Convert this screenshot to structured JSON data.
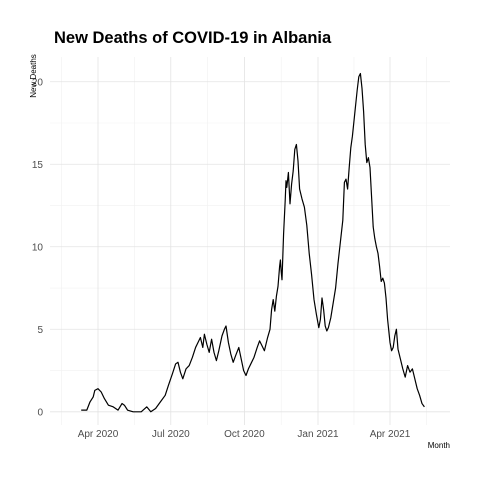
{
  "chart_data": {
    "type": "line",
    "title": "New Deaths of COVID-19 in Albania",
    "xlabel": "Month",
    "ylabel": "New Deaths",
    "xlim": [
      "2020-02-01",
      "2021-06-15"
    ],
    "ylim": [
      -0.8,
      21.5
    ],
    "y_ticks": [
      0,
      5,
      10,
      15,
      20
    ],
    "x_ticks": [
      {
        "date": "2020-04-01",
        "label": "Apr 2020"
      },
      {
        "date": "2020-07-01",
        "label": "Jul 2020"
      },
      {
        "date": "2020-10-01",
        "label": "Oct 2020"
      },
      {
        "date": "2021-01-01",
        "label": "Jan 2021"
      },
      {
        "date": "2021-04-01",
        "label": "Apr 2021"
      }
    ],
    "grid": true,
    "series": [
      {
        "color": "#000000",
        "points": [
          [
            "2020-03-11",
            0.1
          ],
          [
            "2020-03-18",
            0.1
          ],
          [
            "2020-03-22",
            0.6
          ],
          [
            "2020-03-26",
            0.9
          ],
          [
            "2020-03-28",
            1.3
          ],
          [
            "2020-04-01",
            1.4
          ],
          [
            "2020-04-05",
            1.2
          ],
          [
            "2020-04-09",
            0.8
          ],
          [
            "2020-04-14",
            0.4
          ],
          [
            "2020-04-20",
            0.3
          ],
          [
            "2020-04-26",
            0.1
          ],
          [
            "2020-05-01",
            0.5
          ],
          [
            "2020-05-04",
            0.4
          ],
          [
            "2020-05-08",
            0.1
          ],
          [
            "2020-05-15",
            0.0
          ],
          [
            "2020-05-25",
            0.0
          ],
          [
            "2020-06-01",
            0.3
          ],
          [
            "2020-06-06",
            0.0
          ],
          [
            "2020-06-12",
            0.2
          ],
          [
            "2020-06-18",
            0.6
          ],
          [
            "2020-06-24",
            1.0
          ],
          [
            "2020-06-28",
            1.6
          ],
          [
            "2020-07-03",
            2.3
          ],
          [
            "2020-07-07",
            2.9
          ],
          [
            "2020-07-10",
            3.0
          ],
          [
            "2020-07-13",
            2.4
          ],
          [
            "2020-07-16",
            2.0
          ],
          [
            "2020-07-20",
            2.6
          ],
          [
            "2020-07-24",
            2.8
          ],
          [
            "2020-07-28",
            3.3
          ],
          [
            "2020-08-01",
            3.9
          ],
          [
            "2020-08-04",
            4.2
          ],
          [
            "2020-08-07",
            4.5
          ],
          [
            "2020-08-10",
            3.9
          ],
          [
            "2020-08-12",
            4.7
          ],
          [
            "2020-08-15",
            4.1
          ],
          [
            "2020-08-18",
            3.6
          ],
          [
            "2020-08-21",
            4.4
          ],
          [
            "2020-08-24",
            3.6
          ],
          [
            "2020-08-27",
            3.1
          ],
          [
            "2020-08-30",
            3.7
          ],
          [
            "2020-09-03",
            4.6
          ],
          [
            "2020-09-06",
            5.0
          ],
          [
            "2020-09-08",
            5.2
          ],
          [
            "2020-09-11",
            4.2
          ],
          [
            "2020-09-14",
            3.5
          ],
          [
            "2020-09-17",
            3.0
          ],
          [
            "2020-09-20",
            3.4
          ],
          [
            "2020-09-24",
            3.9
          ],
          [
            "2020-09-27",
            3.2
          ],
          [
            "2020-09-30",
            2.5
          ],
          [
            "2020-10-03",
            2.2
          ],
          [
            "2020-10-06",
            2.6
          ],
          [
            "2020-10-09",
            2.9
          ],
          [
            "2020-10-13",
            3.3
          ],
          [
            "2020-10-17",
            3.9
          ],
          [
            "2020-10-20",
            4.3
          ],
          [
            "2020-10-23",
            4.0
          ],
          [
            "2020-10-26",
            3.7
          ],
          [
            "2020-10-30",
            4.5
          ],
          [
            "2020-11-02",
            5.0
          ],
          [
            "2020-11-04",
            6.2
          ],
          [
            "2020-11-06",
            6.8
          ],
          [
            "2020-11-08",
            6.1
          ],
          [
            "2020-11-10",
            7.0
          ],
          [
            "2020-11-12",
            7.6
          ],
          [
            "2020-11-14",
            8.8
          ],
          [
            "2020-11-15",
            9.2
          ],
          [
            "2020-11-16",
            8.5
          ],
          [
            "2020-11-17",
            8.0
          ],
          [
            "2020-11-19",
            10.8
          ],
          [
            "2020-11-21",
            12.8
          ],
          [
            "2020-11-22",
            14.0
          ],
          [
            "2020-11-23",
            13.6
          ],
          [
            "2020-11-25",
            14.5
          ],
          [
            "2020-11-27",
            12.6
          ],
          [
            "2020-11-29",
            13.8
          ],
          [
            "2020-12-01",
            14.6
          ],
          [
            "2020-12-03",
            15.9
          ],
          [
            "2020-12-05",
            16.2
          ],
          [
            "2020-12-07",
            15.2
          ],
          [
            "2020-12-09",
            13.5
          ],
          [
            "2020-12-12",
            12.9
          ],
          [
            "2020-12-15",
            12.4
          ],
          [
            "2020-12-18",
            11.3
          ],
          [
            "2020-12-21",
            9.6
          ],
          [
            "2020-12-24",
            8.3
          ],
          [
            "2020-12-27",
            6.8
          ],
          [
            "2020-12-30",
            5.9
          ],
          [
            "2021-01-02",
            5.1
          ],
          [
            "2021-01-04",
            5.6
          ],
          [
            "2021-01-06",
            6.9
          ],
          [
            "2021-01-08",
            6.2
          ],
          [
            "2021-01-10",
            5.2
          ],
          [
            "2021-01-12",
            4.9
          ],
          [
            "2021-01-14",
            5.1
          ],
          [
            "2021-01-17",
            5.7
          ],
          [
            "2021-01-20",
            6.6
          ],
          [
            "2021-01-23",
            7.5
          ],
          [
            "2021-01-26",
            9.0
          ],
          [
            "2021-01-29",
            10.3
          ],
          [
            "2021-02-01",
            11.6
          ],
          [
            "2021-02-03",
            13.9
          ],
          [
            "2021-02-05",
            14.1
          ],
          [
            "2021-02-07",
            13.5
          ],
          [
            "2021-02-09",
            14.8
          ],
          [
            "2021-02-11",
            16.0
          ],
          [
            "2021-02-13",
            16.7
          ],
          [
            "2021-02-16",
            18.1
          ],
          [
            "2021-02-19",
            19.5
          ],
          [
            "2021-02-21",
            20.3
          ],
          [
            "2021-02-23",
            20.5
          ],
          [
            "2021-02-25",
            19.6
          ],
          [
            "2021-02-27",
            18.2
          ],
          [
            "2021-03-01",
            16.2
          ],
          [
            "2021-03-03",
            15.1
          ],
          [
            "2021-03-05",
            15.4
          ],
          [
            "2021-03-07",
            14.8
          ],
          [
            "2021-03-09",
            13.0
          ],
          [
            "2021-03-11",
            11.2
          ],
          [
            "2021-03-13",
            10.5
          ],
          [
            "2021-03-15",
            10.0
          ],
          [
            "2021-03-17",
            9.6
          ],
          [
            "2021-03-19",
            8.8
          ],
          [
            "2021-03-21",
            7.9
          ],
          [
            "2021-03-23",
            8.1
          ],
          [
            "2021-03-25",
            7.8
          ],
          [
            "2021-03-27",
            6.9
          ],
          [
            "2021-03-29",
            5.6
          ],
          [
            "2021-04-01",
            4.2
          ],
          [
            "2021-04-03",
            3.7
          ],
          [
            "2021-04-05",
            3.9
          ],
          [
            "2021-04-07",
            4.6
          ],
          [
            "2021-04-09",
            5.0
          ],
          [
            "2021-04-11",
            3.8
          ],
          [
            "2021-04-14",
            3.2
          ],
          [
            "2021-04-17",
            2.6
          ],
          [
            "2021-04-20",
            2.1
          ],
          [
            "2021-04-23",
            2.8
          ],
          [
            "2021-04-26",
            2.4
          ],
          [
            "2021-04-29",
            2.6
          ],
          [
            "2021-05-02",
            2.0
          ],
          [
            "2021-05-05",
            1.4
          ],
          [
            "2021-05-08",
            1.0
          ],
          [
            "2021-05-11",
            0.5
          ],
          [
            "2021-05-14",
            0.3
          ]
        ]
      }
    ]
  }
}
